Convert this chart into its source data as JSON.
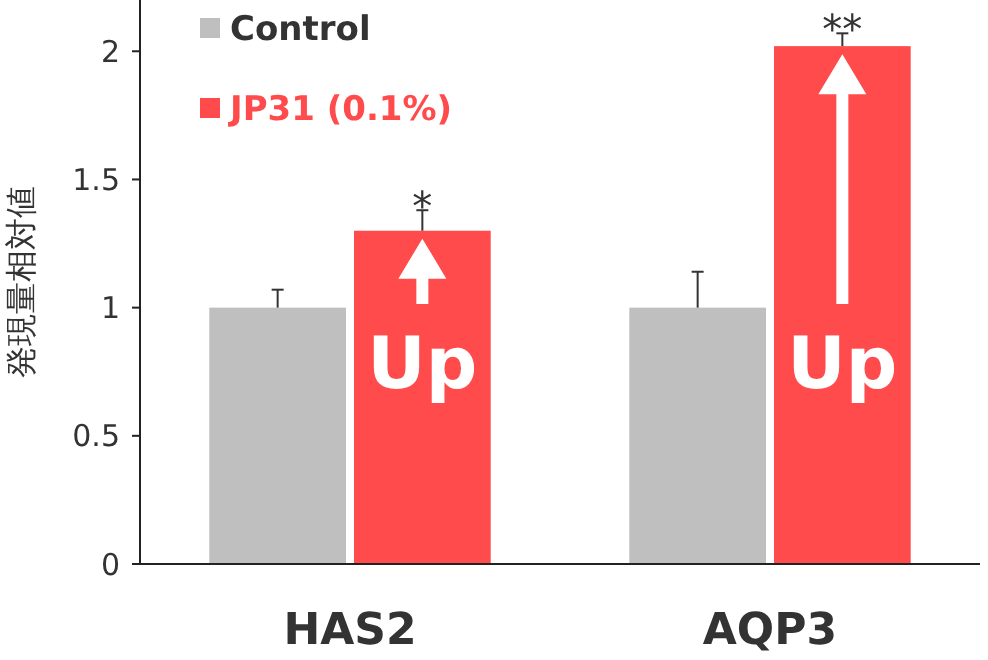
{
  "chart_data": {
    "type": "bar",
    "ylabel": "発現量相対値",
    "categories": [
      "HAS2",
      "AQP3"
    ],
    "series": [
      {
        "name": "Control",
        "color": "#bfbfbf",
        "values": [
          1,
          1
        ],
        "errors": [
          [
            1,
            1.07
          ],
          [
            1,
            1.14
          ]
        ]
      },
      {
        "name": "JP31 (0.1%)",
        "color": "#ff4b4b",
        "values": [
          1.3,
          2.02
        ],
        "errors": [
          [
            1.3,
            1.38
          ],
          [
            2.02,
            2.07
          ]
        ]
      }
    ],
    "ylim": [
      0,
      2.2
    ],
    "yticks": [
      0,
      0.5,
      1,
      1.5,
      2
    ],
    "grid": false,
    "legend": "top left",
    "annotations": [
      "*",
      "**",
      "Up",
      "Up"
    ]
  }
}
